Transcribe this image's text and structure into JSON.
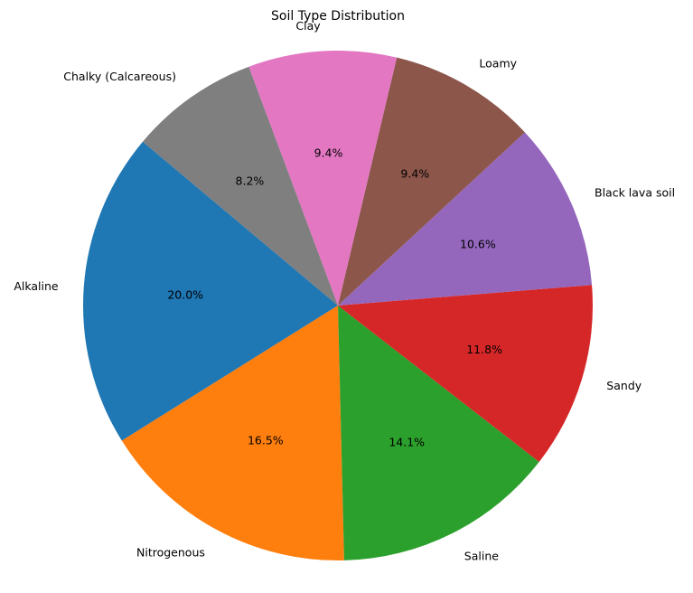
{
  "chart_data": {
    "type": "pie",
    "title": "Soil Type Distribution",
    "categories": [
      "Alkaline",
      "Nitrogenous",
      "Saline",
      "Sandy",
      "Black lava soil",
      "Loamy",
      "Clay",
      "Chalky (Calcareous)"
    ],
    "values": [
      20.0,
      16.5,
      14.1,
      11.8,
      10.6,
      9.4,
      9.4,
      8.2
    ],
    "value_labels": [
      "20.0%",
      "16.5%",
      "14.1%",
      "11.8%",
      "10.6%",
      "9.4%",
      "9.4%",
      "8.2%"
    ],
    "colors": [
      "#1f77b4",
      "#ff7f0e",
      "#2ca02c",
      "#d62728",
      "#9467bd",
      "#8c564b",
      "#e377c2",
      "#7f7f7f"
    ],
    "start_angle_deg": 140,
    "direction": "counterclockwise",
    "legend": "none"
  }
}
